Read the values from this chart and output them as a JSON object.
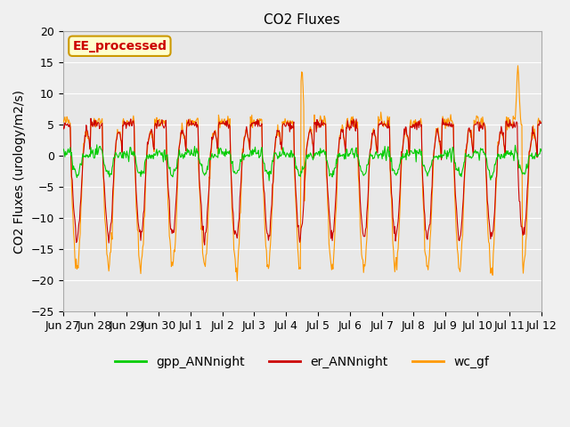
{
  "title": "CO2 Fluxes",
  "ylabel": "CO2 Fluxes (urology/m2/s)",
  "ylim": [
    -25,
    20
  ],
  "yticks": [
    -25,
    -20,
    -15,
    -10,
    -5,
    0,
    5,
    10,
    15,
    20
  ],
  "background_color": "#f0f0f0",
  "plot_bg_color": "#e8e8e8",
  "series": {
    "gpp_ANNnight": {
      "color": "#00cc00",
      "label": "gpp_ANNnight"
    },
    "er_ANNnight": {
      "color": "#cc0000",
      "label": "er_ANNnight"
    },
    "wc_gf": {
      "color": "#ff9900",
      "label": "wc_gf"
    }
  },
  "legend_box": {
    "text": "EE_processed",
    "facecolor": "#ffffcc",
    "edgecolor": "#cc9900",
    "textcolor": "#cc0000"
  },
  "x_tick_labels": [
    "Jun 27",
    "Jun 28",
    "Jun 29",
    "Jun 30",
    "Jul 1",
    "Jul 2",
    "Jul 3",
    "Jul 4",
    "Jul 5",
    "Jul 6",
    "Jul 7",
    "Jul 8",
    "Jul 9",
    "Jul 10",
    "Jul 11",
    "Jul 12"
  ],
  "n_days": 15,
  "points_per_day": 48,
  "title_fontsize": 11,
  "axis_label_fontsize": 10,
  "tick_fontsize": 9,
  "legend_fontsize": 10
}
